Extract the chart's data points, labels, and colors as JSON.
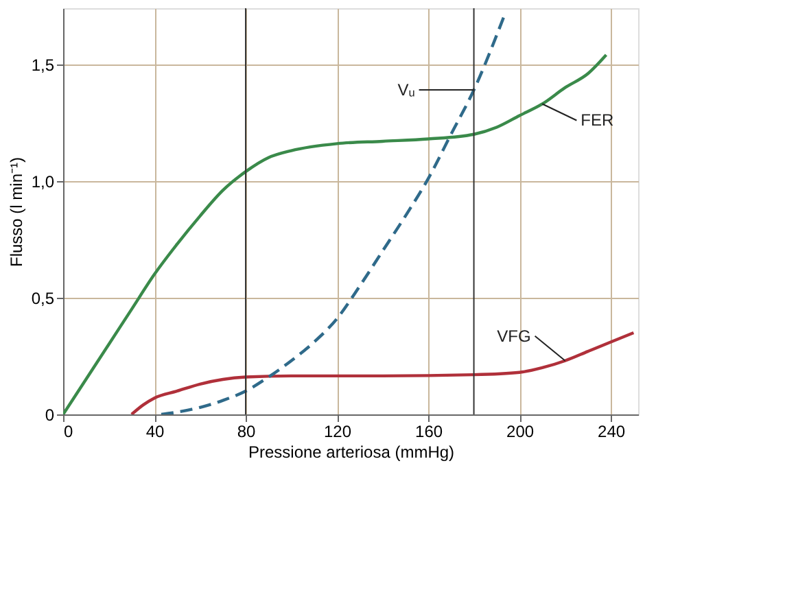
{
  "chart_data": {
    "type": "line",
    "xlabel": "Pressione arteriosa (mmHg)",
    "ylabel": "Flusso (l min⁻¹)",
    "xlim": [
      0,
      252
    ],
    "ylim": [
      0,
      1.74
    ],
    "xticks": [
      0,
      40,
      80,
      120,
      160,
      200,
      240
    ],
    "yticks": [
      0,
      {
        "value": 0.5,
        "label": "0,5"
      },
      {
        "value": 1.0,
        "label": "1,0"
      },
      {
        "value": 1.5,
        "label": "1,5"
      }
    ],
    "grid": true,
    "line_style": "solid",
    "series": [
      {
        "color": "#3a8a4a",
        "x": [
          0,
          10,
          20,
          30,
          40,
          50,
          60,
          70,
          80,
          90,
          100,
          120,
          140,
          160,
          180,
          190,
          200,
          210,
          220,
          230,
          238
        ],
        "values": [
          0,
          0.15,
          0.3,
          0.45,
          0.6,
          0.73,
          0.85,
          0.96,
          1.04,
          1.1,
          1.13,
          1.16,
          1.17,
          1.18,
          1.2,
          1.23,
          1.28,
          1.33,
          1.4,
          1.46,
          1.54
        ]
      },
      {
        "color": "#b0303a",
        "x": [
          30,
          35,
          40,
          50,
          60,
          70,
          80,
          100,
          140,
          180,
          200,
          210,
          220,
          230,
          240,
          250
        ],
        "values": [
          0,
          0.04,
          0.07,
          0.1,
          0.13,
          0.15,
          0.16,
          0.165,
          0.165,
          0.17,
          0.18,
          0.2,
          0.23,
          0.27,
          0.31,
          0.35
        ]
      },
      {
        "color": "#2f6a8a",
        "line_style": "dashed",
        "x": [
          43,
          50,
          60,
          70,
          80,
          90,
          100,
          110,
          120,
          130,
          140,
          150,
          160,
          170,
          180,
          193
        ],
        "values": [
          0,
          0.01,
          0.03,
          0.06,
          0.1,
          0.16,
          0.23,
          0.31,
          0.41,
          0.55,
          0.7,
          0.85,
          1.01,
          1.2,
          1.39,
          1.7
        ]
      }
    ],
    "annotations": [
      {
        "text": "Vᵤ",
        "x": 180,
        "y": 1.39
      },
      {
        "text": "FER",
        "x": 210,
        "y": 1.33
      },
      {
        "text": "VFG",
        "x": 220,
        "y": 0.23
      }
    ],
    "ref_lines": [
      {
        "axis": "x",
        "value": 80,
        "color": "#333333"
      },
      {
        "axis": "x",
        "value": 180,
        "color": "#333333"
      }
    ]
  }
}
